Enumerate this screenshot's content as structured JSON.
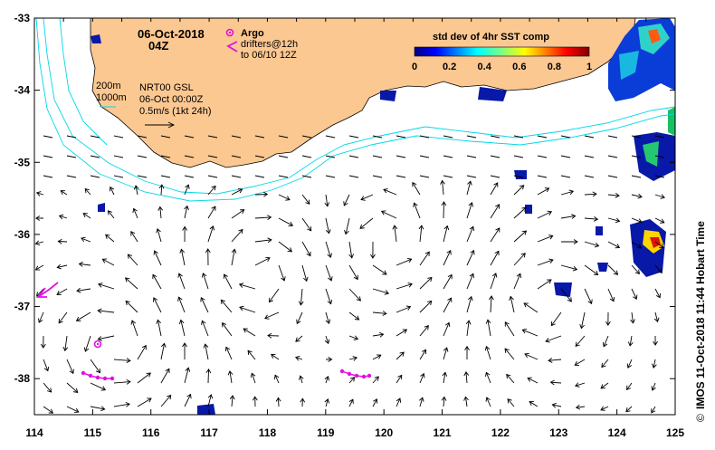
{
  "map": {
    "date_label": "06-Oct-2018",
    "time_label": "04Z",
    "argo_label": "Argo",
    "drifters_label_1": "drifters@12h",
    "drifters_label_2": "to 06/10 12Z",
    "contour_200_label": "200m",
    "contour_1000_label": "1000m",
    "product_label": "NRT00 GSL",
    "product_time_label": "06-Oct 00:00Z",
    "scale_label": "0.5m/s (1kt 24h)",
    "colorbar_title": "std dev of 4hr SST comp",
    "colorbar_ticks": [
      "0",
      "0.2",
      "0.4",
      "0.6",
      "0.8",
      "1"
    ],
    "colorbar_min": 0,
    "colorbar_max": 1,
    "credit": "IMOS 11-Oct-2018 11:44 Hobart Time",
    "credit_symbol": "©",
    "x_ticks": [
      "114",
      "115",
      "116",
      "117",
      "118",
      "119",
      "120",
      "121",
      "122",
      "123",
      "124",
      "125"
    ],
    "y_ticks": [
      "-33",
      "-34",
      "-35",
      "-36",
      "-37",
      "-38"
    ],
    "lon_range": [
      114,
      125
    ],
    "lat_range": [
      -38.5,
      -33
    ],
    "colors": {
      "land": "#fcc891",
      "isobath": "#00d8e8",
      "drifter": "#e010e0",
      "argo": "#e010e0",
      "sst_low": "#0000b0"
    }
  }
}
